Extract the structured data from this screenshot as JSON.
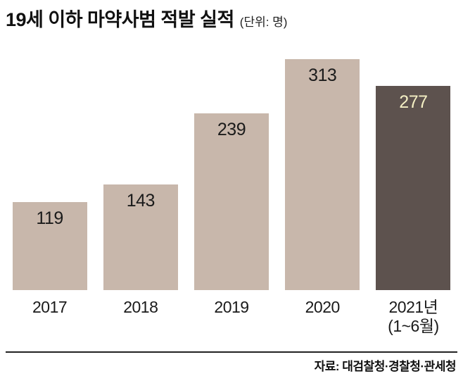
{
  "header": {
    "title": "19세 이하 마약사범 적발 실적",
    "unit_label": "(단위: 명)"
  },
  "footer": {
    "source": "자료: 대검찰청·경찰청·관세청"
  },
  "chart_data": {
    "type": "bar",
    "title": "19세 이하 마약사범 적발 실적",
    "unit": "명",
    "categories": [
      "2017",
      "2018",
      "2019",
      "2020",
      "2021년"
    ],
    "category_sublabels": [
      "",
      "",
      "",
      "",
      "(1~6월)"
    ],
    "values": [
      119,
      143,
      239,
      313,
      277
    ],
    "ylim": [
      0,
      332
    ],
    "grid": false,
    "legend": "none",
    "bar_colors": [
      "#c8b7ab",
      "#c8b7ab",
      "#c8b7ab",
      "#c8b7ab",
      "#5d524e"
    ],
    "value_label_colors": [
      "#1b1b1b",
      "#1b1b1b",
      "#1b1b1b",
      "#1b1b1b",
      "#f4efc4"
    ],
    "source": "자료: 대검찰청·경찰청·관세청"
  }
}
